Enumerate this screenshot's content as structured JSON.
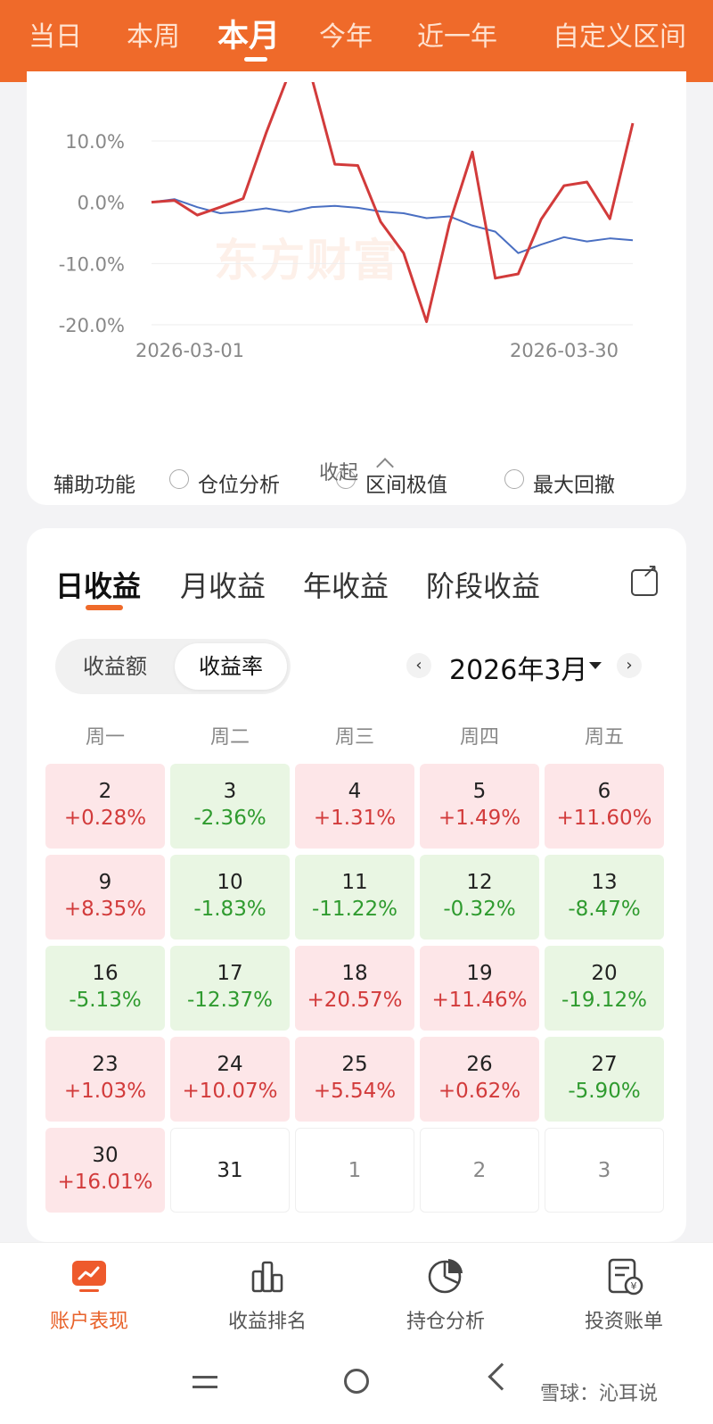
{
  "period_tabs": [
    "当日",
    "本周",
    "本月",
    "今年",
    "近一年",
    "自定义区间"
  ],
  "period_active": "本月",
  "chart_data": {
    "type": "line",
    "x_start_label": "2026-03-01",
    "x_end_label": "2026-03-30",
    "y_ticks": [
      "10.0%",
      "0.0%",
      "-10.0%",
      "-20.0%"
    ],
    "ylim": [
      -20,
      10
    ],
    "watermark": "东方财富",
    "x": [
      1,
      2,
      3,
      4,
      5,
      6,
      7,
      8,
      9,
      10,
      11,
      12,
      13,
      14,
      15,
      16,
      17,
      18,
      19,
      20,
      21,
      22
    ],
    "series": [
      {
        "color": "#d23b3b",
        "values": [
          0.0,
          0.3,
          -2.1,
          -0.8,
          0.6,
          11.3,
          21.0,
          20.2,
          6.2,
          6.0,
          -3.2,
          -8.3,
          -19.5,
          -3.5,
          8.2,
          -12.4,
          -11.7,
          -2.8,
          2.7,
          3.3,
          -2.7,
          12.9
        ]
      },
      {
        "color": "#4a6fc2",
        "values": [
          0.0,
          0.5,
          -0.8,
          -1.8,
          -1.5,
          -1.0,
          -1.6,
          -0.8,
          -0.6,
          -0.9,
          -1.5,
          -1.8,
          -2.6,
          -2.3,
          -3.8,
          -4.8,
          -8.3,
          -6.9,
          -5.7,
          -6.4,
          -5.9,
          -6.2
        ]
      }
    ]
  },
  "aux": {
    "label": "辅助功能",
    "options": [
      "仓位分析",
      "区间极值",
      "最大回撤"
    ],
    "collapse_label": "收起"
  },
  "returns": {
    "tabs": [
      "日收益",
      "月收益",
      "年收益",
      "阶段收益"
    ],
    "toggle": [
      "收益额",
      "收益率"
    ],
    "month_label": "2026年3月",
    "prev": "‹",
    "next": "›",
    "weekdays": [
      "周一",
      "周二",
      "周三",
      "周四",
      "周五"
    ],
    "weeks": [
      [
        {
          "day": "2",
          "pct": "+0.28%",
          "t": "pos"
        },
        {
          "day": "3",
          "pct": "-2.36%",
          "t": "neg"
        },
        {
          "day": "4",
          "pct": "+1.31%",
          "t": "pos"
        },
        {
          "day": "5",
          "pct": "+1.49%",
          "t": "pos"
        },
        {
          "day": "6",
          "pct": "+11.60%",
          "t": "pos"
        }
      ],
      [
        {
          "day": "9",
          "pct": "+8.35%",
          "t": "pos"
        },
        {
          "day": "10",
          "pct": "-1.83%",
          "t": "neg"
        },
        {
          "day": "11",
          "pct": "-11.22%",
          "t": "neg"
        },
        {
          "day": "12",
          "pct": "-0.32%",
          "t": "neg"
        },
        {
          "day": "13",
          "pct": "-8.47%",
          "t": "neg"
        }
      ],
      [
        {
          "day": "16",
          "pct": "-5.13%",
          "t": "neg"
        },
        {
          "day": "17",
          "pct": "-12.37%",
          "t": "neg"
        },
        {
          "day": "18",
          "pct": "+20.57%",
          "t": "pos"
        },
        {
          "day": "19",
          "pct": "+11.46%",
          "t": "pos"
        },
        {
          "day": "20",
          "pct": "-19.12%",
          "t": "neg"
        }
      ],
      [
        {
          "day": "23",
          "pct": "+1.03%",
          "t": "pos"
        },
        {
          "day": "24",
          "pct": "+10.07%",
          "t": "pos"
        },
        {
          "day": "25",
          "pct": "+5.54%",
          "t": "pos"
        },
        {
          "day": "26",
          "pct": "+0.62%",
          "t": "pos"
        },
        {
          "day": "27",
          "pct": "-5.90%",
          "t": "neg"
        }
      ],
      [
        {
          "day": "30",
          "pct": "+16.01%",
          "t": "pos"
        },
        {
          "day": "31",
          "pct": "",
          "t": "empty"
        },
        {
          "day": "1",
          "pct": "",
          "t": "future"
        },
        {
          "day": "2",
          "pct": "",
          "t": "future"
        },
        {
          "day": "3",
          "pct": "",
          "t": "future"
        }
      ]
    ]
  },
  "bottom_nav": [
    {
      "label": "账户表现",
      "icon": "trend-chart-icon"
    },
    {
      "label": "收益排名",
      "icon": "bar-ranking-icon"
    },
    {
      "label": "持仓分析",
      "icon": "pie-chart-icon"
    },
    {
      "label": "投资账单",
      "icon": "bill-icon"
    }
  ],
  "corner_mark": "雪球：沁耳说",
  "colors": {
    "accent": "#ef6a2a",
    "up": "#d23b3b",
    "down": "#2f9b2f"
  }
}
